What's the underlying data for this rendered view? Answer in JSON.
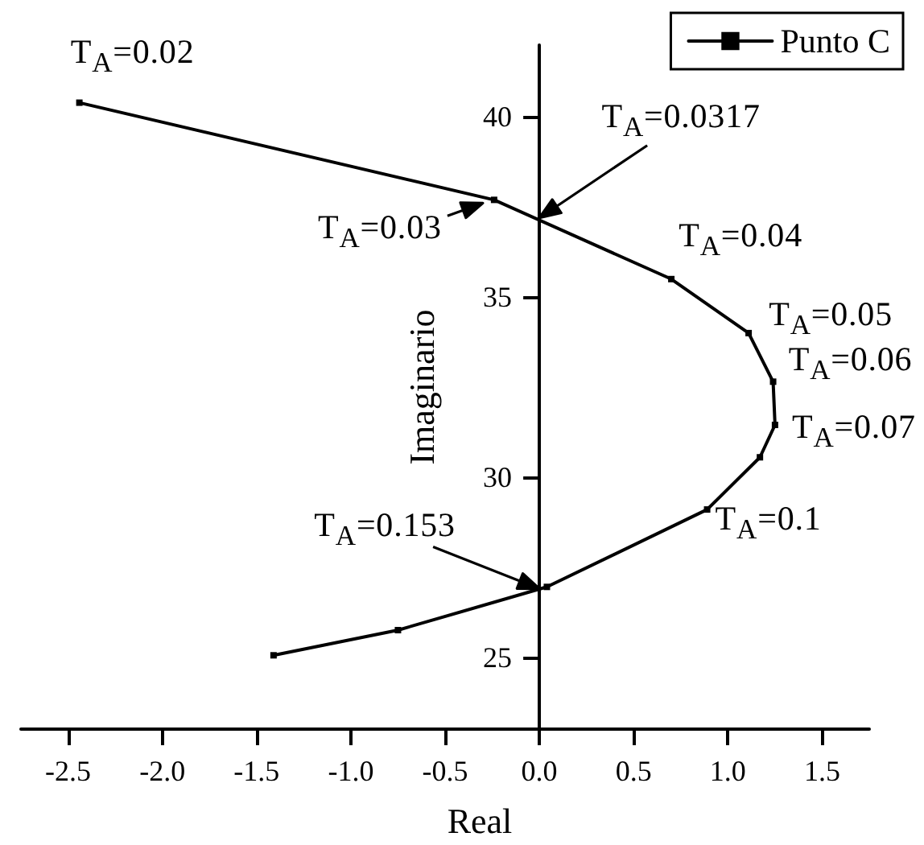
{
  "chart_data": {
    "type": "line",
    "xlabel": "Real",
    "ylabel": "Imaginario",
    "series": [
      {
        "name": "Punto C",
        "color": "#000000",
        "x": [
          -2.44,
          -0.24,
          0.7,
          1.11,
          1.24,
          1.25,
          1.17,
          0.89,
          0.04,
          -0.75,
          -1.41
        ],
        "values": [
          40.4,
          37.7,
          35.5,
          34.0,
          32.65,
          31.45,
          30.55,
          29.1,
          26.95,
          25.75,
          25.05
        ]
      }
    ],
    "xlim": [
      -2.75,
      1.75
    ],
    "xticks": [
      -2.5,
      {
        "value": -2,
        "label": "-2.0"
      },
      -1.5,
      {
        "value": -1,
        "label": "-1.0"
      },
      -0.5,
      {
        "value": 0,
        "label": "0.0"
      },
      0.5,
      {
        "value": 1,
        "label": "1.0"
      },
      1.5
    ],
    "ylim": [
      23,
      42
    ],
    "yticks": [
      25,
      30,
      35,
      40
    ],
    "grid": false,
    "legend": "top right",
    "marker": "square",
    "line_style": "solid",
    "annotations": [
      {
        "text": "T$_{A}$=0.02",
        "x": -2.44,
        "y": 40.4
      },
      {
        "text": "T$_{A}$=0.03",
        "x": -0.24,
        "y": 37.7
      },
      {
        "text": "T$_{A}$=0.0317",
        "x": 0,
        "y": 37.2
      },
      {
        "text": "T$_{A}$=0.04",
        "x": 0.7,
        "y": 35.5
      },
      {
        "text": "T$_{A}$=0.05",
        "x": 1.11,
        "y": 34.0
      },
      {
        "text": "T$_{A}$=0.06",
        "x": 1.24,
        "y": 32.65
      },
      {
        "text": "T$_{A}$=0.07",
        "x": 1.25,
        "y": 31.45
      },
      {
        "text": "T$_{A}$=0.1",
        "x": 0.89,
        "y": 29.1
      },
      {
        "text": "T$_{A}$=0.153",
        "x": 0,
        "y": 26.9
      }
    ]
  }
}
